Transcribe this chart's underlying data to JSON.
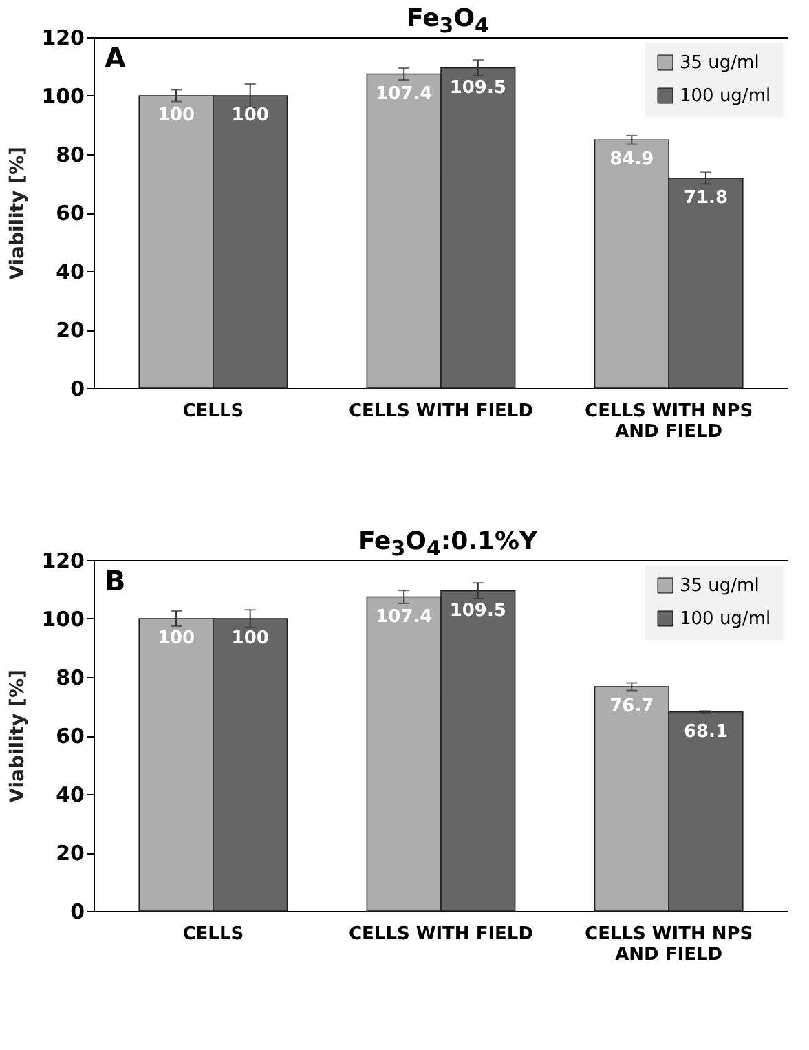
{
  "chart_data": [
    {
      "type": "bar",
      "title": "Fe$_{3}$O$_{4}$",
      "ylabel": "Viability [%]",
      "annotations": [
        "A"
      ],
      "categories": [
        "CELLS",
        "CELLS WITH FIELD",
        "CELLS WITH NPS AND FIELD"
      ],
      "series": [
        {
          "name": "35 ug/ml",
          "color": "#adadad",
          "values": [
            100,
            107.4,
            84.9
          ],
          "errors": [
            2,
            2,
            1.5
          ]
        },
        {
          "name": "100 ug/ml",
          "color": "#666666",
          "values": [
            100,
            109.5,
            71.8
          ],
          "errors": [
            4,
            2.7,
            2
          ]
        }
      ],
      "ylim": [
        0,
        120
      ],
      "yticks": [
        0,
        20,
        40,
        60,
        80,
        100,
        120
      ],
      "data_labels": true,
      "legend": "top right",
      "grid": false
    },
    {
      "type": "bar",
      "title": "Fe$_{3}$O$_{4}$:0.1%Y",
      "ylabel": "Viability [%]",
      "annotations": [
        "B"
      ],
      "categories": [
        "CELLS",
        "CELLS WITH FIELD",
        "CELLS WITH NPS AND FIELD"
      ],
      "series": [
        {
          "name": "35 ug/ml",
          "color": "#adadad",
          "values": [
            100,
            107.4,
            76.7
          ],
          "errors": [
            2.6,
            2.2,
            1.3
          ]
        },
        {
          "name": "100 ug/ml",
          "color": "#666666",
          "values": [
            100,
            109.5,
            68.1
          ],
          "errors": [
            3,
            2.7,
            0.3
          ]
        }
      ],
      "ylim": [
        0,
        120
      ],
      "yticks": [
        0,
        20,
        40,
        60,
        80,
        100,
        120
      ],
      "data_labels": true,
      "legend": "top right",
      "grid": false
    }
  ]
}
